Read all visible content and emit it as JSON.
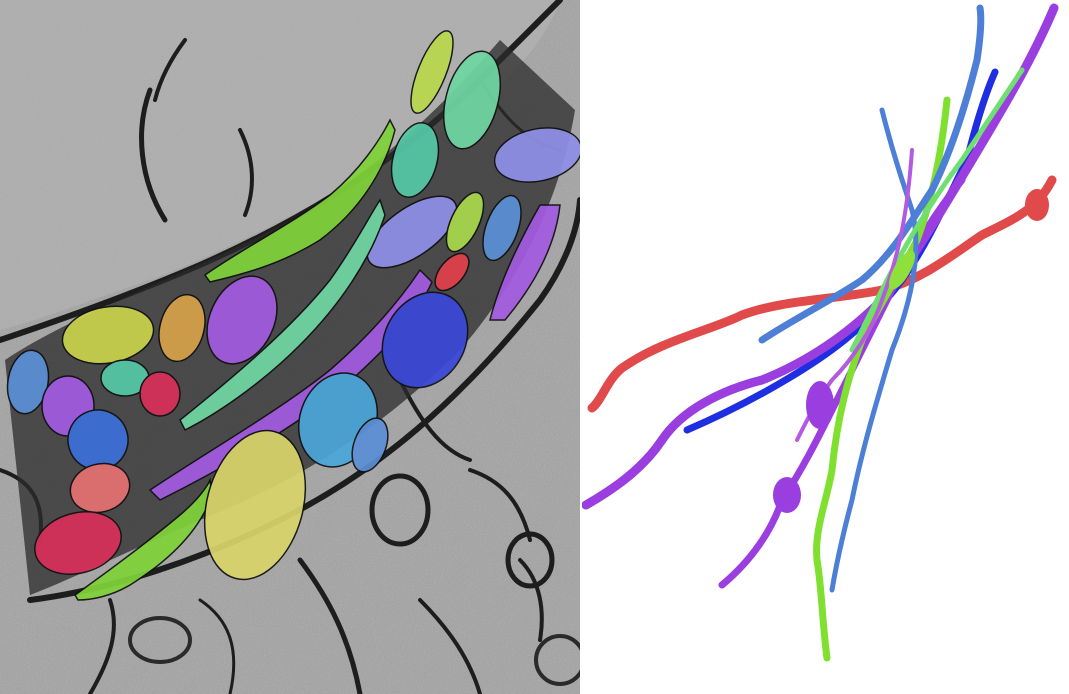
{
  "figure": {
    "left_panel": "em-segmentation",
    "right_panel": "3d-neurite-reconstruction"
  },
  "palette": {
    "green": "#7fd33a",
    "light_green": "#a8d84c",
    "mint": "#6fd6a3",
    "teal": "#55c8a6",
    "lavender": "#8f8fe8",
    "purple": "#a35be0",
    "violet": "#9b44d6",
    "blue": "#3a6fd8",
    "sky": "#4aa6d9",
    "steel_blue": "#5b8fd6",
    "dark_blue": "#1f2fd6",
    "olive": "#c8d24a",
    "khaki": "#d8d46a",
    "orange": "#d6a24a",
    "red": "#e0404a",
    "salmon": "#e57070",
    "crimson": "#d8305a",
    "recon_red": "#e04a4a",
    "recon_purple": "#9a3ee0",
    "recon_green": "#7fe030",
    "recon_blue": "#1e2ee0",
    "recon_steel": "#4d7fd6"
  }
}
